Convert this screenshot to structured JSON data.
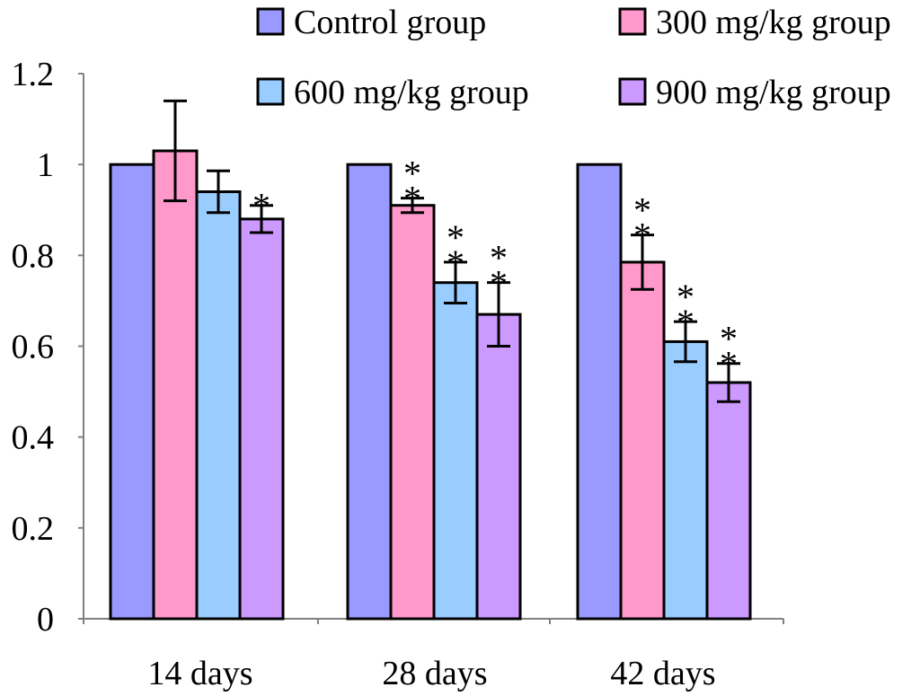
{
  "chart_data": {
    "type": "bar",
    "title": "",
    "xlabel": "",
    "ylabel": "",
    "ylim": [
      0,
      1.2
    ],
    "yticks": [
      0,
      0.2,
      0.4,
      0.6,
      0.8,
      1,
      1.2
    ],
    "ytick_labels": [
      "0",
      "0.2",
      "0.4",
      "0.6",
      "0.8",
      "1",
      "1.2"
    ],
    "categories": [
      "14 days",
      "28 days",
      "42 days"
    ],
    "legend_position": "top-right",
    "series": [
      {
        "name": "Control group",
        "color": "#9999FF",
        "values": [
          1.0,
          1.0,
          1.0
        ],
        "errors": [
          0,
          0,
          0
        ],
        "significance": [
          "",
          "",
          ""
        ]
      },
      {
        "name": "300 mg/kg group",
        "color": "#FF99CC",
        "values": [
          1.03,
          0.91,
          0.785
        ],
        "errors": [
          0.11,
          0.016,
          0.06
        ],
        "significance": [
          "",
          "**",
          "**"
        ]
      },
      {
        "name": "600 mg/kg group",
        "color": "#99CCFF",
        "values": [
          0.94,
          0.74,
          0.61
        ],
        "errors": [
          0.046,
          0.045,
          0.044
        ],
        "significance": [
          "",
          "**",
          "**"
        ]
      },
      {
        "name": "900 mg/kg group",
        "color": "#CC99FF",
        "values": [
          0.88,
          0.67,
          0.52
        ],
        "errors": [
          0.03,
          0.07,
          0.042
        ],
        "significance": [
          "*",
          "**",
          "**"
        ]
      }
    ]
  }
}
